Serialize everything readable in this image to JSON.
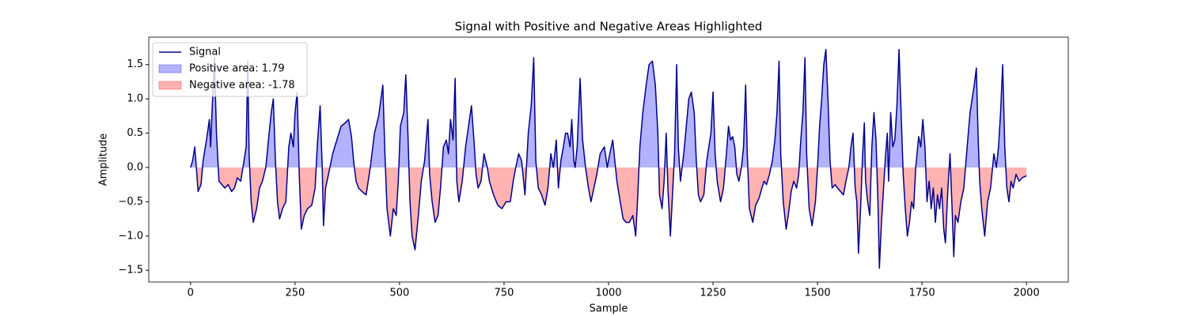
{
  "chart_data": {
    "type": "line",
    "title": "Signal with Positive and Negative Areas Highlighted",
    "xlabel": "Sample",
    "ylabel": "Amplitude",
    "x": [
      0,
      5,
      10,
      15,
      18,
      25,
      30,
      38,
      45,
      48,
      52,
      57,
      62,
      68,
      75,
      82,
      90,
      98,
      105,
      112,
      120,
      128,
      133,
      137,
      140,
      145,
      150,
      158,
      165,
      172,
      180,
      188,
      193,
      198,
      203,
      208,
      213,
      220,
      228,
      235,
      240,
      246,
      250,
      255,
      260,
      265,
      272,
      280,
      290,
      298,
      303,
      310,
      315,
      318,
      323,
      330,
      340,
      350,
      360,
      370,
      378,
      385,
      390,
      396,
      402,
      410,
      420,
      430,
      440,
      450,
      460,
      465,
      470,
      478,
      485,
      492,
      497,
      502,
      510,
      515,
      520,
      525,
      530,
      537,
      545,
      552,
      560,
      568,
      572,
      578,
      585,
      592,
      598,
      605,
      612,
      617,
      622,
      628,
      633,
      637,
      642,
      650,
      658,
      665,
      672,
      678,
      683,
      688,
      695,
      702,
      710,
      715,
      725,
      735,
      745,
      755,
      765,
      772,
      778,
      785,
      792,
      800,
      808,
      815,
      821,
      826,
      832,
      840,
      848,
      855,
      862,
      868,
      875,
      880,
      886,
      892,
      897,
      902,
      908,
      912,
      917,
      920,
      925,
      932,
      938,
      945,
      952,
      958,
      965,
      972,
      980,
      990,
      997,
      1003,
      1010,
      1015,
      1020,
      1028,
      1035,
      1042,
      1050,
      1058,
      1065,
      1070,
      1075,
      1082,
      1090,
      1097,
      1105,
      1112,
      1118,
      1122,
      1128,
      1133,
      1138,
      1142,
      1148,
      1153,
      1158,
      1163,
      1167,
      1172,
      1180,
      1186,
      1192,
      1198,
      1205,
      1210,
      1215,
      1220,
      1228,
      1235,
      1240,
      1245,
      1250,
      1255,
      1260,
      1268,
      1275,
      1282,
      1287,
      1292,
      1297,
      1302,
      1307,
      1312,
      1318,
      1323,
      1328,
      1332,
      1337,
      1345,
      1352,
      1360,
      1367,
      1372,
      1378,
      1385,
      1392,
      1398,
      1403,
      1408,
      1412,
      1418,
      1425,
      1430,
      1437,
      1443,
      1450,
      1455,
      1460,
      1465,
      1470,
      1474,
      1480,
      1487,
      1495,
      1500,
      1505,
      1510,
      1515,
      1520,
      1525,
      1530,
      1535,
      1542,
      1548,
      1555,
      1562,
      1568,
      1575,
      1580,
      1585,
      1590,
      1594,
      1598,
      1603,
      1608,
      1612,
      1615,
      1620,
      1625,
      1630,
      1635,
      1640,
      1645,
      1648,
      1653,
      1658,
      1663,
      1667,
      1670,
      1675,
      1680,
      1685,
      1690,
      1695,
      1700,
      1705,
      1710,
      1715,
      1720,
      1725,
      1730,
      1735,
      1742,
      1747,
      1752,
      1757,
      1762,
      1767,
      1772,
      1777,
      1782,
      1787,
      1792,
      1797,
      1802,
      1806,
      1812,
      1817,
      1822,
      1826,
      1830,
      1836,
      1843,
      1850,
      1858,
      1865,
      1870,
      1875,
      1880,
      1884,
      1888,
      1893,
      1900,
      1907,
      1914,
      1922,
      1928,
      1933,
      1938,
      1943,
      1948,
      1953,
      1958,
      1963,
      1968,
      1975,
      1982,
      1990,
      2000
    ],
    "series": [
      {
        "name": "Signal",
        "color": "#00008b",
        "values": [
          0,
          0.1,
          0.3,
          -0.1,
          -0.35,
          -0.25,
          0.1,
          0.4,
          0.7,
          0.3,
          0.9,
          1.6,
          0.5,
          -0.2,
          -0.25,
          -0.3,
          -0.25,
          -0.35,
          -0.3,
          -0.15,
          -0.2,
          0.1,
          0.3,
          1.55,
          0.2,
          -0.5,
          -0.8,
          -0.6,
          -0.3,
          -0.2,
          0.0,
          0.5,
          0.8,
          1.0,
          0.1,
          -0.5,
          -0.75,
          -0.6,
          -0.5,
          0.3,
          0.5,
          0.3,
          0.8,
          1.1,
          -0.1,
          -0.9,
          -0.7,
          -0.6,
          -0.55,
          -0.3,
          0.3,
          0.9,
          0.0,
          -0.85,
          -0.3,
          -0.1,
          0.2,
          0.4,
          0.6,
          0.65,
          0.7,
          0.45,
          0.1,
          -0.2,
          -0.3,
          -0.35,
          -0.4,
          0.0,
          0.5,
          0.75,
          1.2,
          0.2,
          -0.6,
          -1.0,
          -0.6,
          -0.7,
          -0.2,
          0.6,
          0.8,
          1.35,
          0.5,
          -0.5,
          -1.0,
          -1.2,
          -0.7,
          -0.2,
          0.1,
          0.7,
          -0.1,
          -0.5,
          -0.8,
          -0.7,
          -0.3,
          0.3,
          0.4,
          0.2,
          0.7,
          0.4,
          1.3,
          -0.2,
          -0.5,
          -0.2,
          0.3,
          0.6,
          0.9,
          0.4,
          -0.1,
          -0.3,
          -0.2,
          0.2,
          0.0,
          -0.2,
          -0.4,
          -0.55,
          -0.6,
          -0.5,
          -0.5,
          -0.2,
          0.0,
          0.2,
          0.1,
          -0.4,
          0.5,
          0.9,
          1.6,
          0.1,
          -0.3,
          -0.4,
          -0.55,
          -0.3,
          0.2,
          0.0,
          0.4,
          -0.3,
          0.1,
          0.3,
          0.5,
          0.5,
          0.3,
          0.7,
          0.1,
          0.0,
          0.3,
          1.3,
          0.4,
          0.0,
          -0.3,
          -0.5,
          -0.3,
          -0.1,
          0.2,
          0.3,
          0.0,
          0.2,
          0.4,
          0.1,
          -0.2,
          -0.5,
          -0.75,
          -0.8,
          -0.8,
          -0.7,
          -1.0,
          -0.4,
          0.3,
          0.8,
          1.2,
          1.5,
          1.55,
          1.2,
          0.5,
          -0.4,
          -0.6,
          -0.2,
          0.5,
          -0.3,
          -1.0,
          -0.4,
          0.2,
          1.5,
          0.3,
          -0.2,
          0.2,
          0.6,
          1.0,
          1.1,
          0.8,
          0.1,
          -0.4,
          -0.5,
          -0.4,
          0.1,
          0.3,
          0.5,
          1.1,
          0.2,
          -0.2,
          -0.5,
          -0.3,
          0.2,
          0.6,
          0.4,
          0.45,
          0.3,
          -0.1,
          -0.2,
          0.0,
          0.3,
          1.2,
          0.2,
          -0.6,
          -0.8,
          -0.55,
          -0.45,
          -0.3,
          -0.2,
          -0.25,
          -0.1,
          0.1,
          0.4,
          0.8,
          1.55,
          0.2,
          -0.5,
          -0.9,
          -0.7,
          -0.35,
          -0.2,
          -0.3,
          -0.1,
          0.4,
          0.8,
          1.6,
          0.2,
          -0.6,
          -0.85,
          -0.5,
          0.0,
          0.6,
          1.0,
          1.5,
          1.72,
          1.0,
          0.1,
          -0.3,
          -0.25,
          -0.3,
          -0.35,
          -0.4,
          -0.2,
          0.0,
          0.3,
          0.5,
          -0.3,
          -0.5,
          -1.25,
          -0.6,
          0.2,
          0.65,
          -0.2,
          -0.5,
          -0.7,
          0.3,
          0.8,
          0.4,
          -0.6,
          -1.47,
          -0.8,
          -0.3,
          0.2,
          0.5,
          -0.2,
          0.8,
          0.3,
          0.4,
          0.9,
          1.72,
          0.8,
          -0.1,
          -0.6,
          -1.0,
          -0.8,
          -0.5,
          -0.6,
          0.0,
          0.45,
          0.3,
          0.7,
          0.3,
          -0.5,
          -0.2,
          -0.6,
          -0.3,
          -0.8,
          -0.4,
          -0.6,
          -0.3,
          -0.9,
          -1.1,
          -0.3,
          0.2,
          -0.6,
          -1.3,
          -0.7,
          -0.8,
          -0.5,
          -0.3,
          0.3,
          0.8,
          1.0,
          1.2,
          1.45,
          0.5,
          -0.2,
          -0.6,
          -1.0,
          -0.5,
          -0.3,
          0.2,
          0.0,
          0.3,
          0.8,
          1.5,
          0.3,
          -0.3,
          -0.5,
          -0.2,
          -0.3,
          -0.1,
          -0.2,
          -0.15,
          -0.12
        ]
      }
    ],
    "fills": [
      {
        "name": "Positive area: 1.79",
        "color": "#0000ff",
        "where": "above"
      },
      {
        "name": "Negative area: -1.78",
        "color": "#ff0000",
        "where": "below"
      }
    ],
    "fill_alpha": 0.3,
    "xlim": [
      -100,
      2100
    ],
    "xticks": [
      0,
      250,
      500,
      750,
      1000,
      1250,
      1500,
      1750,
      2000
    ],
    "ylim": [
      -1.67,
      1.9
    ],
    "yticks": [
      {
        "value": -1.5,
        "label": "−1.5"
      },
      {
        "value": -1,
        "label": "−1.0"
      },
      {
        "value": -0.5,
        "label": "−0.5"
      },
      {
        "value": 0,
        "label": "0.0"
      },
      0.5,
      {
        "value": 1,
        "label": "1.0"
      },
      1.5
    ],
    "legend": "upper left"
  }
}
